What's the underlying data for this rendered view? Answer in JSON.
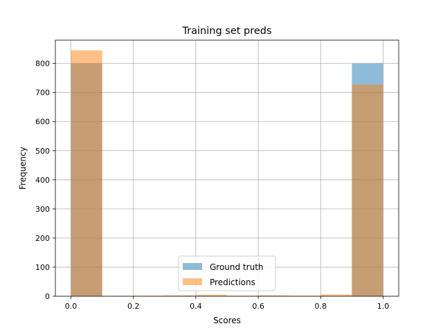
{
  "chart_data": {
    "type": "bar",
    "title": "Training set preds",
    "xlabel": "Scores",
    "ylabel": "Frequency",
    "xlim": [
      -0.05,
      1.05
    ],
    "ylim": [
      0,
      880
    ],
    "xticks": [
      0.0,
      0.2,
      0.4,
      0.6,
      0.8,
      1.0
    ],
    "xtick_labels": [
      "0.0",
      "0.2",
      "0.4",
      "0.6",
      "0.8",
      "1.0"
    ],
    "yticks": [
      0,
      100,
      200,
      300,
      400,
      500,
      600,
      700,
      800
    ],
    "ytick_labels": [
      "0",
      "100",
      "200",
      "300",
      "400",
      "500",
      "600",
      "700",
      "800"
    ],
    "grid": true,
    "legend_position": "lower center",
    "bin_edges": [
      0.0,
      0.1,
      0.2,
      0.3,
      0.4,
      0.5,
      0.6,
      0.7,
      0.8,
      0.9,
      1.0
    ],
    "series": [
      {
        "name": "Ground truth",
        "color": "#1f77b4",
        "alpha": 0.5,
        "values": [
          800,
          0,
          0,
          0,
          0,
          0,
          0,
          0,
          0,
          800
        ]
      },
      {
        "name": "Predictions",
        "color": "#ff7f0e",
        "alpha": 0.5,
        "values": [
          845,
          1,
          2,
          3,
          5,
          2,
          3,
          2,
          6,
          727
        ]
      }
    ]
  }
}
